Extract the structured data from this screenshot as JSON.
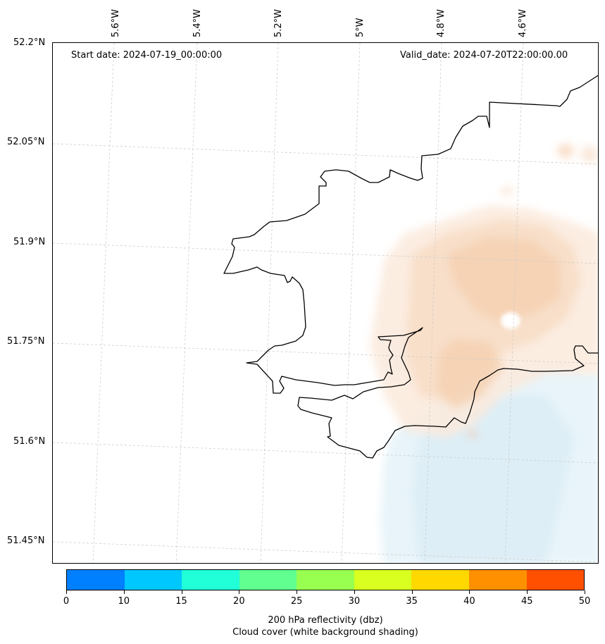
{
  "header": {
    "start_date": "Start date: 2024-07-19_00:00:00",
    "valid_date": "Valid_date: 2024-07-20T22:00:00.00"
  },
  "axes": {
    "lon_labels": [
      "5.6°W",
      "5.4°W",
      "5.2°W",
      "5°W",
      "4.8°W",
      "4.6°W"
    ],
    "lat_labels": [
      "52.2°N",
      "52.05°N",
      "51.9°N",
      "51.75°N",
      "51.6°N",
      "51.45°N"
    ]
  },
  "colorbar": {
    "ticks": [
      "0",
      "10",
      "15",
      "20",
      "25",
      "30",
      "35",
      "40",
      "45",
      "50"
    ],
    "colors": [
      "#0080ff",
      "#00c8ff",
      "#20ffd8",
      "#60ff90",
      "#98ff50",
      "#d8ff20",
      "#ffd800",
      "#ff9000",
      "#ff5000"
    ],
    "label_line1": "200 hPa reflectivity (dbz)",
    "label_line2": "Cloud cover (white background shading)"
  }
}
